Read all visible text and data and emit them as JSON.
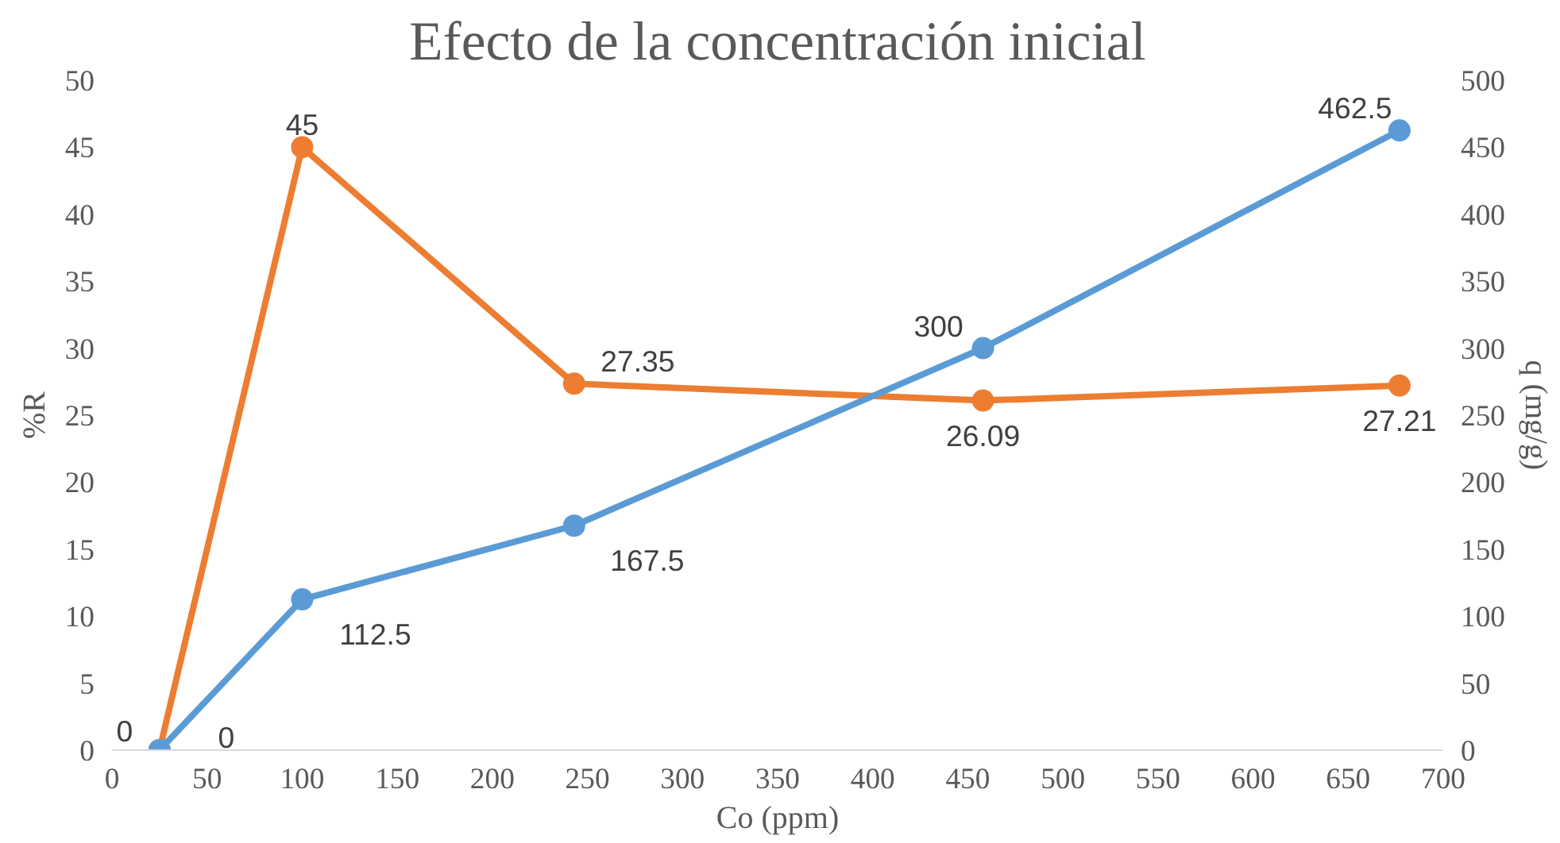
{
  "chart_data": {
    "type": "line",
    "title": "Efecto de la concentración inicial",
    "xlabel": "Co (ppm)",
    "ylabel": "%R",
    "y2label": "q (mg/g)",
    "xlim": [
      0,
      700
    ],
    "xticks": [
      0,
      50,
      100,
      150,
      200,
      250,
      300,
      350,
      400,
      450,
      500,
      550,
      600,
      650,
      700
    ],
    "ylim": [
      0,
      50
    ],
    "yticks": [
      0,
      5,
      10,
      15,
      20,
      25,
      30,
      35,
      40,
      45,
      50
    ],
    "y2lim": [
      0,
      500
    ],
    "y2ticks": [
      0,
      50,
      100,
      150,
      200,
      250,
      300,
      350,
      400,
      450,
      500
    ],
    "x": [
      25,
      100,
      243,
      458,
      677
    ],
    "series": [
      {
        "color": "#ed7d31",
        "values": [
          0,
          45,
          27.35,
          26.09,
          27.21
        ]
      },
      {
        "color": "#5b9bd5",
        "values": [
          0,
          112.5,
          167.5,
          300,
          462.5
        ],
        "axis": "y2"
      }
    ],
    "data_labels": true,
    "marker": "circle",
    "grid": false
  }
}
